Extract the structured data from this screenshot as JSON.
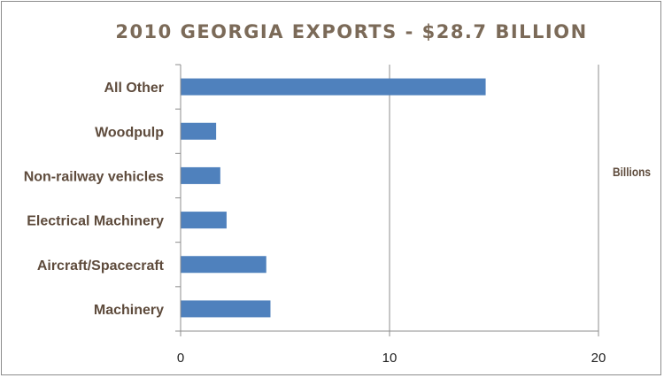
{
  "chart_data": {
    "type": "bar",
    "orientation": "horizontal",
    "title": "2010 GEORGIA EXPORTS - $28.7 BILLION",
    "unit_label": "Billions",
    "categories": [
      "All Other",
      "Woodpulp",
      "Non-railway vehicles",
      "Electrical Machinery",
      "Aircraft/Spacecraft",
      "Machinery"
    ],
    "values": [
      14.6,
      1.7,
      1.9,
      2.2,
      4.1,
      4.3
    ],
    "xlim": [
      0,
      20
    ],
    "x_ticks": [
      0,
      10,
      20
    ],
    "grid": "vertical major gridlines",
    "bar_color": "#4f81bd",
    "title_color": "#7b6a58",
    "label_color": "#5e4b3c"
  }
}
